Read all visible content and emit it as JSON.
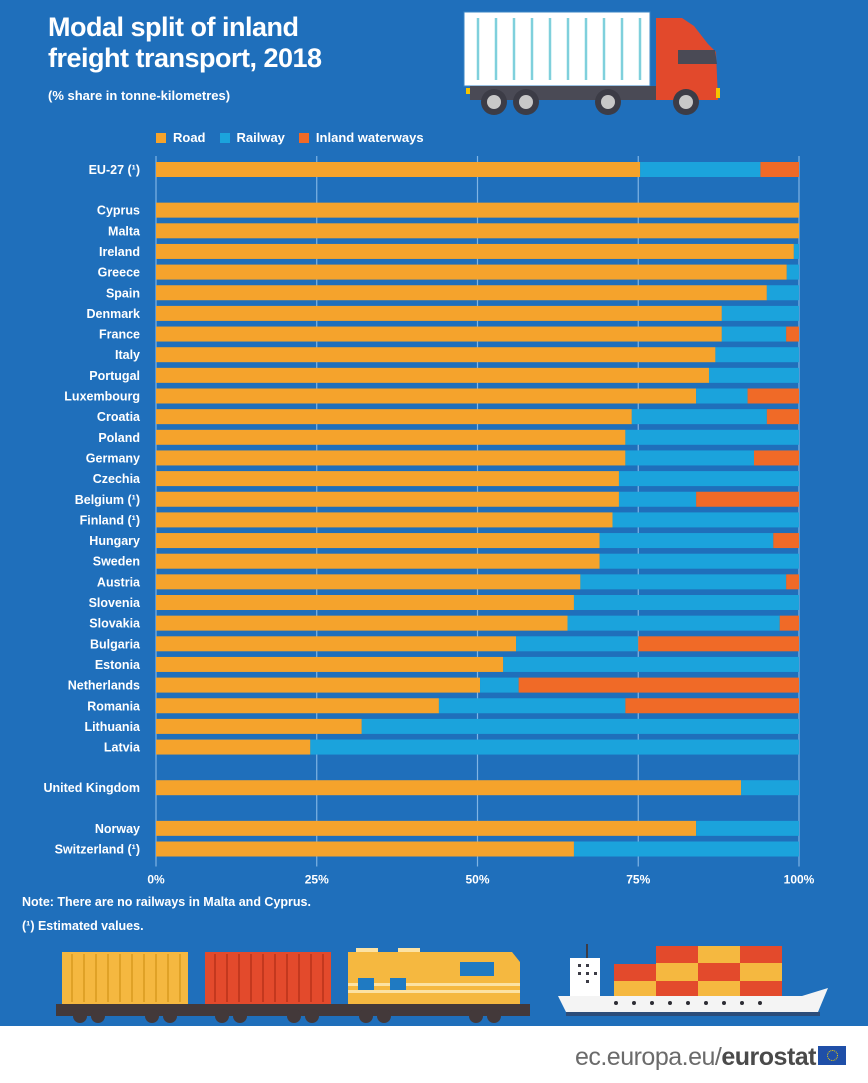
{
  "title_line1": "Modal split of inland",
  "title_line2": "freight transport, 2018",
  "subtitle": "(% share in tonne-kilometres)",
  "legend": [
    {
      "label": "Road",
      "color": "#f5a32c"
    },
    {
      "label": "Railway",
      "color": "#1ba3dc"
    },
    {
      "label": "Inland waterways",
      "color": "#f06a27"
    }
  ],
  "notes": {
    "line1": "Note: There are no railways in Malta and Cyprus.",
    "line2": "(¹) Estimated values."
  },
  "footer": {
    "url_prefix": "ec.europa.eu/",
    "url_brand": "eurostat",
    "flag_icon": "eu-flag-icon"
  },
  "illustrations": [
    "truck-icon",
    "freight-train-icon",
    "container-ship-icon"
  ],
  "chart_data": {
    "type": "bar",
    "orientation": "horizontal",
    "stacked": true,
    "title": "Modal split of inland freight transport, 2018",
    "subtitle": "(% share in tonne-kilometres)",
    "xlabel": "",
    "ylabel": "",
    "xlim": [
      0,
      100
    ],
    "x_ticks": [
      "0%",
      "25%",
      "50%",
      "75%",
      "100%"
    ],
    "grid": true,
    "legend_position": "top",
    "categories": [
      "EU-27 (¹)",
      "Cyprus",
      "Malta",
      "Ireland",
      "Greece",
      "Spain",
      "Denmark",
      "France",
      "Italy",
      "Portugal",
      "Luxembourg",
      "Croatia",
      "Poland",
      "Germany",
      "Czechia",
      "Belgium (¹)",
      "Finland (¹)",
      "Hungary",
      "Sweden",
      "Austria",
      "Slovenia",
      "Slovakia",
      "Bulgaria",
      "Estonia",
      "Netherlands",
      "Romania",
      "Lithuania",
      "Latvia",
      "United Kingdom",
      "Norway",
      "Switzerland (¹)"
    ],
    "groups": [
      0,
      1,
      1,
      1,
      1,
      1,
      1,
      1,
      1,
      1,
      1,
      1,
      1,
      1,
      1,
      1,
      1,
      1,
      1,
      1,
      1,
      1,
      1,
      1,
      1,
      1,
      1,
      1,
      2,
      3,
      3
    ],
    "series": [
      {
        "name": "Road",
        "color": "#f5a32c",
        "values": [
          75.3,
          100,
          100,
          99.2,
          98.1,
          95,
          88,
          88,
          87,
          86,
          84,
          74,
          73,
          73,
          72,
          72,
          71,
          69,
          69,
          66,
          65,
          64,
          56,
          54,
          50.4,
          44,
          32,
          24,
          91,
          84,
          65
        ]
      },
      {
        "name": "Railway",
        "color": "#1ba3dc",
        "values": [
          18.7,
          0,
          0,
          0.8,
          1.9,
          5,
          12,
          10,
          13,
          14,
          8,
          21,
          27,
          20,
          28,
          12,
          29,
          27,
          31,
          32,
          35,
          33,
          19,
          46,
          6,
          29,
          68,
          76,
          9,
          16,
          35
        ]
      },
      {
        "name": "Inland waterways",
        "color": "#f06a27",
        "values": [
          6,
          0,
          0,
          0,
          0,
          0,
          0,
          2,
          0,
          0,
          8,
          5,
          0,
          7,
          0,
          16,
          0,
          4,
          0,
          2,
          0,
          3,
          25,
          0,
          43.6,
          27,
          0,
          0,
          0,
          0,
          0
        ]
      }
    ]
  }
}
